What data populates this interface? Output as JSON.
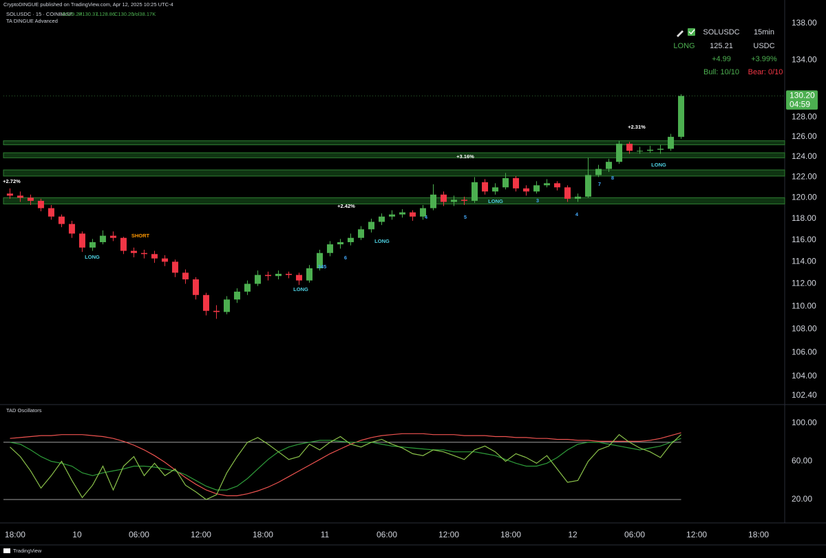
{
  "published": "CryptoDINGUE published on TradingView.com, Apr 12, 2025 10:25 UTC-4",
  "footer": "TradingView",
  "info_panel": {
    "symbol": "SOLUSDC",
    "interval": "15min",
    "signal": "LONG",
    "price": "125.21",
    "quote": "USDC",
    "change": "+4.99",
    "change_pct": "+3.99%",
    "bull": "Bull: 10/10",
    "bear": "Bear: 0/10"
  },
  "chart_data": [
    {
      "type": "candlestick",
      "title": "SOLUSDC · 15 · COINBASE",
      "legend": [
        "O129.27",
        "H130.37",
        "L128.86",
        "C130.20",
        "Vol38.17K"
      ],
      "indicator": "TA DINGUE Advanced",
      "up_color": "#4caf50",
      "down_color": "#f23645",
      "log_scale": true,
      "grid": false,
      "x": [
        -7,
        -6,
        -5,
        -4,
        -3,
        -2,
        -1,
        0,
        1,
        2,
        3,
        4,
        5,
        6,
        7,
        8,
        9,
        10,
        11,
        12,
        13,
        14,
        15,
        16,
        17,
        18,
        19,
        20,
        21,
        22,
        23,
        24,
        25,
        26,
        27,
        28,
        29,
        30,
        31,
        32,
        33,
        34,
        35,
        36,
        37,
        38,
        39,
        40,
        41,
        42,
        43,
        44,
        45,
        46,
        47,
        48,
        49,
        50,
        51,
        52,
        53,
        54,
        55,
        56,
        57,
        58
      ],
      "open": [
        120.4,
        120.2,
        120.0,
        119.7,
        119.0,
        118.2,
        117.5,
        116.6,
        115.3,
        115.8,
        116.4,
        116.2,
        115.0,
        114.8,
        114.7,
        114.3,
        114.0,
        113.0,
        112.4,
        111.0,
        109.6,
        109.5,
        110.6,
        111.3,
        112.0,
        112.8,
        112.7,
        112.9,
        112.8,
        112.3,
        113.4,
        114.8,
        115.6,
        115.8,
        116.2,
        117.0,
        117.7,
        118.2,
        118.4,
        118.6,
        118.2,
        119.0,
        120.3,
        119.6,
        119.8,
        119.7,
        121.5,
        120.6,
        121.0,
        121.9,
        120.9,
        120.6,
        121.2,
        121.4,
        121.0,
        119.9,
        120.1,
        122.2,
        122.8,
        123.5,
        125.3,
        124.6,
        124.6,
        124.7,
        124.8,
        126.0
      ],
      "high": [
        120.9,
        120.6,
        120.3,
        119.9,
        119.3,
        118.4,
        117.8,
        116.8,
        116.1,
        116.9,
        116.8,
        116.3,
        115.3,
        115.1,
        115.0,
        114.6,
        114.2,
        113.3,
        112.6,
        111.2,
        110.1,
        110.9,
        111.6,
        112.3,
        113.2,
        113.1,
        113.2,
        113.1,
        113.0,
        113.7,
        115.1,
        115.9,
        116.1,
        116.6,
        117.3,
        118.0,
        118.5,
        118.8,
        118.9,
        118.8,
        119.3,
        121.3,
        120.6,
        120.2,
        120.1,
        122.0,
        121.8,
        121.4,
        122.4,
        122.1,
        121.2,
        121.6,
        121.8,
        121.6,
        121.2,
        120.4,
        123.9,
        123.2,
        123.8,
        125.6,
        125.5,
        125.0,
        125.1,
        125.2,
        126.3,
        130.37
      ],
      "low": [
        119.9,
        119.6,
        119.3,
        118.7,
        117.9,
        117.2,
        116.2,
        114.9,
        115.0,
        115.6,
        115.9,
        114.7,
        114.4,
        114.3,
        113.9,
        113.6,
        112.6,
        112.0,
        110.6,
        109.2,
        108.9,
        109.3,
        110.3,
        111.0,
        111.8,
        112.3,
        112.4,
        112.5,
        111.9,
        112.1,
        113.2,
        114.5,
        115.2,
        115.5,
        116.0,
        116.7,
        117.4,
        117.9,
        118.1,
        117.8,
        117.9,
        118.8,
        119.2,
        119.2,
        119.3,
        119.5,
        120.3,
        120.3,
        120.8,
        120.6,
        120.2,
        120.4,
        121.0,
        120.7,
        119.6,
        119.6,
        120.0,
        122.0,
        122.5,
        123.3,
        124.3,
        124.3,
        124.4,
        124.3,
        124.6,
        125.8
      ],
      "close": [
        120.2,
        120.0,
        119.7,
        119.0,
        118.2,
        117.5,
        116.6,
        115.3,
        115.8,
        116.4,
        116.2,
        115.0,
        114.8,
        114.7,
        114.3,
        114.0,
        113.0,
        112.4,
        111.0,
        109.6,
        109.5,
        110.6,
        111.3,
        112.0,
        112.8,
        112.7,
        112.9,
        112.8,
        112.3,
        113.4,
        114.8,
        115.6,
        115.8,
        116.2,
        117.0,
        117.7,
        118.2,
        118.4,
        118.6,
        118.2,
        119.0,
        120.3,
        119.6,
        119.8,
        119.7,
        121.5,
        120.6,
        121.0,
        121.9,
        120.9,
        120.6,
        121.2,
        121.4,
        121.0,
        119.9,
        120.1,
        122.2,
        122.8,
        123.5,
        125.3,
        124.6,
        124.6,
        124.7,
        124.8,
        126.0,
        130.2
      ],
      "zones": [
        {
          "top": 125.6,
          "bottom": 125.2
        },
        {
          "top": 124.4,
          "bottom": 123.9
        },
        {
          "top": 122.7,
          "bottom": 122.1
        },
        {
          "top": 120.0,
          "bottom": 119.4
        }
      ],
      "zone_color": "#1b5e20",
      "last_price": {
        "value": 130.2,
        "label": "130.20"
      },
      "countdown": "04:59",
      "annotations": [
        {
          "text": "+2.72%",
          "color": "#ffffff"
        },
        {
          "text": "LONG",
          "color": "#4dd0e1"
        },
        {
          "text": "SHORT",
          "color": "#ff9800"
        },
        {
          "text": "LONG",
          "color": "#4dd0e1"
        },
        {
          "text": "+2.42%",
          "color": "#ffffff"
        },
        {
          "text": "LONG",
          "color": "#4dd0e1"
        },
        {
          "text": "+3.16%",
          "color": "#ffffff"
        },
        {
          "text": "LONG",
          "color": "#4dd0e1"
        },
        {
          "text": "+2.31%",
          "color": "#ffffff"
        },
        {
          "text": "LONG",
          "color": "#4dd0e1"
        },
        {
          "text": "345",
          "color": "#42a5f5"
        },
        {
          "text": "6",
          "color": "#42a5f5"
        },
        {
          "text": "4",
          "color": "#42a5f5"
        },
        {
          "text": "5",
          "color": "#42a5f5"
        },
        {
          "text": "3",
          "color": "#42a5f5"
        },
        {
          "text": "7",
          "color": "#42a5f5"
        },
        {
          "text": "8",
          "color": "#42a5f5"
        },
        {
          "text": "4",
          "color": "#42a5f5"
        }
      ],
      "xlim": [
        -7.13,
        68.53
      ],
      "xticks": [
        {
          "value": -6,
          "label": "18:00"
        },
        {
          "value": 0,
          "label": "10"
        },
        {
          "value": 6,
          "label": "06:00"
        },
        {
          "value": 12,
          "label": "12:00"
        },
        {
          "value": 18,
          "label": "18:00"
        },
        {
          "value": 24,
          "label": "11"
        },
        {
          "value": 30,
          "label": "06:00"
        },
        {
          "value": 36,
          "label": "12:00"
        },
        {
          "value": 42,
          "label": "18:00"
        },
        {
          "value": 48,
          "label": "12"
        },
        {
          "value": 54,
          "label": "06:00"
        },
        {
          "value": 60,
          "label": "12:00"
        },
        {
          "value": 66,
          "label": "18:00"
        }
      ],
      "ylim": [
        101.67,
        140.6
      ],
      "yticks": [
        {
          "value": 138,
          "label": "138.00"
        },
        {
          "value": 134,
          "label": "134.00"
        },
        {
          "value": 128,
          "label": "128.00"
        },
        {
          "value": 126,
          "label": "126.00"
        },
        {
          "value": 124,
          "label": "124.00"
        },
        {
          "value": 122,
          "label": "122.00"
        },
        {
          "value": 120,
          "label": "120.00"
        },
        {
          "value": 118,
          "label": "118.00"
        },
        {
          "value": 116,
          "label": "116.00"
        },
        {
          "value": 114,
          "label": "114.00"
        },
        {
          "value": 112,
          "label": "112.00"
        },
        {
          "value": 110,
          "label": "110.00"
        },
        {
          "value": 108,
          "label": "108.00"
        },
        {
          "value": 106,
          "label": "106.00"
        },
        {
          "value": 104,
          "label": "104.00"
        },
        {
          "value": 102.4,
          "label": "102.40"
        }
      ]
    },
    {
      "type": "line",
      "title": "TAD Oscillators",
      "ylim": [
        -4.5,
        119.5
      ],
      "yticks": [
        {
          "value": 100,
          "label": "100.00"
        },
        {
          "value": 60,
          "label": "60.00"
        },
        {
          "value": 20,
          "label": "20.00"
        }
      ],
      "levels": [
        80,
        20
      ],
      "level_color": "#9e9e9e",
      "series": [
        {
          "color": "#ef5350",
          "values": [
            84,
            85,
            86,
            87,
            87,
            88,
            88,
            88,
            87,
            86,
            84,
            81,
            77,
            72,
            66,
            59,
            51,
            43,
            36,
            30,
            26,
            24,
            24,
            26,
            29,
            33,
            38,
            44,
            50,
            56,
            62,
            68,
            73,
            78,
            82,
            85,
            87,
            88,
            89,
            89,
            89,
            88,
            88,
            88,
            87,
            87,
            87,
            86,
            86,
            85,
            85,
            84,
            84,
            83,
            83,
            82,
            82,
            81,
            81,
            81,
            81,
            81,
            82,
            84,
            87,
            90
          ]
        },
        {
          "color": "#2e9d3a",
          "values": [
            80,
            78,
            72,
            65,
            60,
            58,
            55,
            48,
            45,
            48,
            50,
            52,
            55,
            55,
            54,
            52,
            50,
            46,
            40,
            34,
            30,
            30,
            34,
            42,
            52,
            62,
            70,
            75,
            78,
            80,
            82,
            82,
            81,
            80,
            80,
            80,
            78,
            76,
            75,
            74,
            73,
            72,
            72,
            70,
            70,
            70,
            68,
            66,
            62,
            58,
            55,
            55,
            58,
            64,
            72,
            78,
            80,
            80,
            78,
            76,
            74,
            72,
            74,
            76,
            80,
            84
          ]
        },
        {
          "color": "#8bc34a",
          "values": [
            75,
            65,
            50,
            32,
            45,
            60,
            40,
            22,
            35,
            55,
            30,
            55,
            65,
            45,
            58,
            45,
            52,
            35,
            28,
            20,
            25,
            48,
            65,
            80,
            85,
            78,
            70,
            62,
            65,
            78,
            72,
            80,
            86,
            78,
            75,
            80,
            83,
            78,
            74,
            68,
            66,
            72,
            70,
            66,
            62,
            72,
            76,
            70,
            60,
            68,
            64,
            58,
            66,
            52,
            38,
            40,
            60,
            72,
            76,
            88,
            80,
            74,
            70,
            64,
            78,
            88
          ]
        }
      ]
    }
  ]
}
